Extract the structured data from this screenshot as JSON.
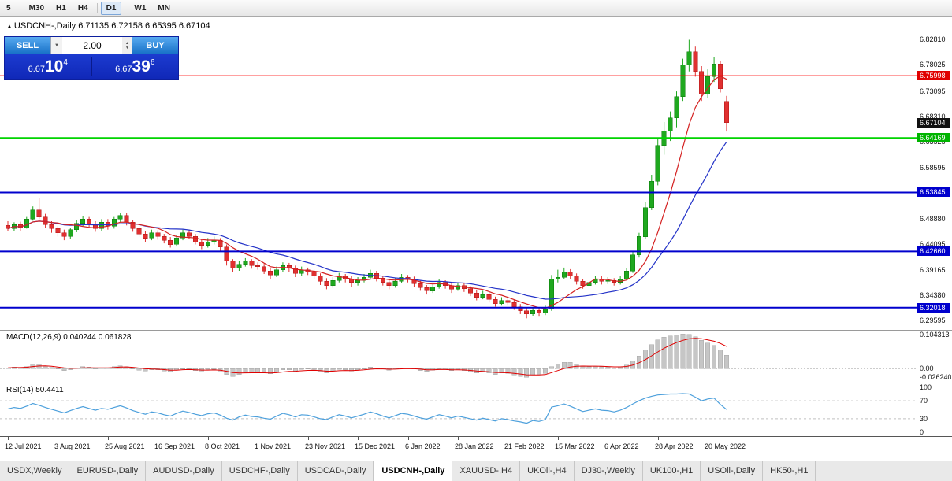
{
  "toolbar": {
    "timeframes": [
      {
        "label": "5",
        "active": false
      },
      {
        "label": "M30",
        "active": false
      },
      {
        "label": "H1",
        "active": false
      },
      {
        "label": "H4",
        "active": false
      },
      {
        "label": "D1",
        "active": true
      },
      {
        "label": "W1",
        "active": false
      },
      {
        "label": "MN",
        "active": false
      }
    ]
  },
  "chart": {
    "arrow": "▲",
    "title": "USDCNH-,Daily",
    "ohlc_text": "6.71135 6.72158 6.65395 6.67104"
  },
  "trade_panel": {
    "sell_label": "SELL",
    "buy_label": "BUY",
    "volume": "2.00",
    "sell_price_main": "6.67",
    "sell_price_big": "10",
    "sell_price_sup": "4",
    "buy_price_main": "6.67",
    "buy_price_big": "39",
    "buy_price_sup": "6"
  },
  "chart_data": {
    "type": "candlestick",
    "symbol": "USDCNH-",
    "timeframe": "Daily",
    "title": "USDCNH-,Daily",
    "last": {
      "open": 6.71135,
      "high": 6.72158,
      "low": 6.65395,
      "close": 6.67104
    },
    "y_axis": {
      "max": 6.872,
      "min": 6.278,
      "ticks": [
        6.8281,
        6.78025,
        6.73095,
        6.6831,
        6.63525,
        6.58595,
        6.4888,
        6.44095,
        6.39165,
        6.3438,
        6.29595
      ]
    },
    "x_labels": [
      "12 Jul 2021",
      "3 Aug 2021",
      "25 Aug 2021",
      "16 Sep 2021",
      "8 Oct 2021",
      "1 Nov 2021",
      "23 Nov 2021",
      "15 Dec 2021",
      "6 Jan 2022",
      "28 Jan 2022",
      "21 Feb 2022",
      "15 Mar 2022",
      "6 Apr 2022",
      "28 Apr 2022",
      "20 May 2022"
    ],
    "candles": [
      [
        6.476,
        6.484,
        6.465,
        6.47
      ],
      [
        6.47,
        6.482,
        6.466,
        6.478
      ],
      [
        6.478,
        6.483,
        6.465,
        6.472
      ],
      [
        6.472,
        6.492,
        6.47,
        6.488
      ],
      [
        6.488,
        6.512,
        6.485,
        6.505
      ],
      [
        6.505,
        6.528,
        6.488,
        6.492
      ],
      [
        6.492,
        6.498,
        6.472,
        6.478
      ],
      [
        6.478,
        6.484,
        6.462,
        6.47
      ],
      [
        6.47,
        6.475,
        6.455,
        6.462
      ],
      [
        6.462,
        6.468,
        6.448,
        6.455
      ],
      [
        6.455,
        6.472,
        6.45,
        6.468
      ],
      [
        6.468,
        6.486,
        6.463,
        6.48
      ],
      [
        6.48,
        6.494,
        6.475,
        6.488
      ],
      [
        6.488,
        6.492,
        6.472,
        6.478
      ],
      [
        6.478,
        6.484,
        6.464,
        6.47
      ],
      [
        6.47,
        6.488,
        6.466,
        6.482
      ],
      [
        6.482,
        6.488,
        6.468,
        6.475
      ],
      [
        6.475,
        6.492,
        6.47,
        6.488
      ],
      [
        6.488,
        6.5,
        6.482,
        6.495
      ],
      [
        6.495,
        6.499,
        6.476,
        6.482
      ],
      [
        6.482,
        6.487,
        6.464,
        6.47
      ],
      [
        6.47,
        6.476,
        6.454,
        6.46
      ],
      [
        6.46,
        6.466,
        6.445,
        6.452
      ],
      [
        6.452,
        6.468,
        6.448,
        6.462
      ],
      [
        6.462,
        6.467,
        6.449,
        6.455
      ],
      [
        6.455,
        6.46,
        6.442,
        6.448
      ],
      [
        6.448,
        6.454,
        6.434,
        6.44
      ],
      [
        6.44,
        6.458,
        6.436,
        6.452
      ],
      [
        6.452,
        6.468,
        6.448,
        6.462
      ],
      [
        6.462,
        6.467,
        6.45,
        6.455
      ],
      [
        6.455,
        6.46,
        6.44,
        6.445
      ],
      [
        6.445,
        6.45,
        6.431,
        6.438
      ],
      [
        6.438,
        6.452,
        6.434,
        6.445
      ],
      [
        6.445,
        6.455,
        6.44,
        6.448
      ],
      [
        6.448,
        6.452,
        6.428,
        6.435
      ],
      [
        6.435,
        6.44,
        6.4,
        6.408
      ],
      [
        6.408,
        6.412,
        6.388,
        6.395
      ],
      [
        6.395,
        6.408,
        6.39,
        6.402
      ],
      [
        6.402,
        6.414,
        6.398,
        6.408
      ],
      [
        6.408,
        6.412,
        6.394,
        6.4
      ],
      [
        6.4,
        6.406,
        6.392,
        6.398
      ],
      [
        6.398,
        6.403,
        6.384,
        6.39
      ],
      [
        6.39,
        6.395,
        6.375,
        6.382
      ],
      [
        6.382,
        6.398,
        6.378,
        6.392
      ],
      [
        6.392,
        6.406,
        6.388,
        6.4
      ],
      [
        6.4,
        6.405,
        6.388,
        6.395
      ],
      [
        6.395,
        6.4,
        6.378,
        6.385
      ],
      [
        6.385,
        6.398,
        6.38,
        6.392
      ],
      [
        6.392,
        6.396,
        6.382,
        6.388
      ],
      [
        6.388,
        6.392,
        6.374,
        6.38
      ],
      [
        6.38,
        6.385,
        6.363,
        6.37
      ],
      [
        6.37,
        6.376,
        6.355,
        6.362
      ],
      [
        6.362,
        6.378,
        6.358,
        6.372
      ],
      [
        6.372,
        6.386,
        6.368,
        6.38
      ],
      [
        6.38,
        6.384,
        6.368,
        6.375
      ],
      [
        6.375,
        6.38,
        6.36,
        6.368
      ],
      [
        6.368,
        6.378,
        6.362,
        6.372
      ],
      [
        6.372,
        6.384,
        6.368,
        6.378
      ],
      [
        6.378,
        6.392,
        6.374,
        6.385
      ],
      [
        6.385,
        6.39,
        6.37,
        6.376
      ],
      [
        6.376,
        6.381,
        6.362,
        6.368
      ],
      [
        6.368,
        6.373,
        6.355,
        6.362
      ],
      [
        6.362,
        6.376,
        6.358,
        6.37
      ],
      [
        6.37,
        6.384,
        6.366,
        6.378
      ],
      [
        6.378,
        6.382,
        6.368,
        6.374
      ],
      [
        6.374,
        6.379,
        6.36,
        6.366
      ],
      [
        6.366,
        6.371,
        6.352,
        6.358
      ],
      [
        6.358,
        6.363,
        6.345,
        6.352
      ],
      [
        6.352,
        6.366,
        6.348,
        6.36
      ],
      [
        6.36,
        6.374,
        6.356,
        6.368
      ],
      [
        6.368,
        6.372,
        6.356,
        6.362
      ],
      [
        6.362,
        6.367,
        6.348,
        6.355
      ],
      [
        6.355,
        6.368,
        6.352,
        6.362
      ],
      [
        6.362,
        6.366,
        6.35,
        6.356
      ],
      [
        6.356,
        6.361,
        6.342,
        6.348
      ],
      [
        6.348,
        6.353,
        6.334,
        6.34
      ],
      [
        6.34,
        6.352,
        6.336,
        6.345
      ],
      [
        6.345,
        6.35,
        6.33,
        6.336
      ],
      [
        6.336,
        6.341,
        6.322,
        6.328
      ],
      [
        6.328,
        6.34,
        6.324,
        6.334
      ],
      [
        6.334,
        6.338,
        6.324,
        6.33
      ],
      [
        6.33,
        6.335,
        6.316,
        6.322
      ],
      [
        6.322,
        6.327,
        6.308,
        6.314
      ],
      [
        6.314,
        6.319,
        6.3,
        6.308
      ],
      [
        6.308,
        6.321,
        6.304,
        6.315
      ],
      [
        6.315,
        6.319,
        6.303,
        6.31
      ],
      [
        6.31,
        6.324,
        6.306,
        6.318
      ],
      [
        6.318,
        6.382,
        6.314,
        6.375
      ],
      [
        6.375,
        6.392,
        6.368,
        6.378
      ],
      [
        6.378,
        6.396,
        6.374,
        6.388
      ],
      [
        6.388,
        6.393,
        6.374,
        6.38
      ],
      [
        6.38,
        6.385,
        6.364,
        6.37
      ],
      [
        6.37,
        6.375,
        6.356,
        6.362
      ],
      [
        6.362,
        6.374,
        6.358,
        6.368
      ],
      [
        6.368,
        6.381,
        6.364,
        6.375
      ],
      [
        6.375,
        6.38,
        6.364,
        6.37
      ],
      [
        6.37,
        6.378,
        6.365,
        6.372
      ],
      [
        6.372,
        6.376,
        6.362,
        6.368
      ],
      [
        6.368,
        6.381,
        6.364,
        6.375
      ],
      [
        6.375,
        6.395,
        6.372,
        6.39
      ],
      [
        6.39,
        6.428,
        6.386,
        6.42
      ],
      [
        6.42,
        6.462,
        6.415,
        6.455
      ],
      [
        6.455,
        6.52,
        6.45,
        6.51
      ],
      [
        6.51,
        6.572,
        6.505,
        6.56
      ],
      [
        6.56,
        6.64,
        6.552,
        6.628
      ],
      [
        6.628,
        6.672,
        6.61,
        6.655
      ],
      [
        6.655,
        6.692,
        6.636,
        6.68
      ],
      [
        6.68,
        6.73,
        6.662,
        6.72
      ],
      [
        6.72,
        6.792,
        6.712,
        6.78
      ],
      [
        6.78,
        6.828,
        6.768,
        6.805
      ],
      [
        6.805,
        6.815,
        6.758,
        6.768
      ],
      [
        6.768,
        6.778,
        6.712,
        6.725
      ],
      [
        6.725,
        6.772,
        6.718,
        6.758
      ],
      [
        6.758,
        6.795,
        6.748,
        6.782
      ],
      [
        6.782,
        6.788,
        6.728,
        6.735
      ],
      [
        6.71135,
        6.72158,
        6.65395,
        6.67104
      ]
    ],
    "hlines": [
      {
        "price": 6.75998,
        "color": "#ff0000",
        "width": 1
      },
      {
        "price": 6.64169,
        "color": "#00d400",
        "width": 2
      },
      {
        "price": 6.53845,
        "color": "#0000cd",
        "width": 2
      },
      {
        "price": 6.4266,
        "color": "#0000cd",
        "width": 2
      },
      {
        "price": 6.32018,
        "color": "#0000cd",
        "width": 2
      }
    ],
    "badges": [
      {
        "price": 6.75998,
        "bg": "#e00000"
      },
      {
        "price": 6.67104,
        "bg": "#111111"
      },
      {
        "price": 6.64169,
        "bg": "#00b400"
      },
      {
        "price": 6.53845,
        "bg": "#0000cd"
      },
      {
        "price": 6.4266,
        "bg": "#0000cd"
      },
      {
        "price": 6.32018,
        "bg": "#0000cd"
      }
    ],
    "colors": {
      "up": "#1fa81f",
      "up_border": "#0b7a0b",
      "down": "#e03030",
      "down_border": "#b01818",
      "ma_fast": "#d42020",
      "ma_slow": "#2433c8"
    }
  },
  "macd": {
    "label": "MACD(12,26,9)",
    "values_text": "0.040244 0.061828",
    "axis": [
      "0.104313",
      "0.00",
      "-0.026240"
    ],
    "bar_color": "#c6c6c6",
    "signal_color": "#e00000",
    "hist": [
      0.002,
      0.004,
      0.003,
      0.006,
      0.012,
      0.013,
      0.008,
      0.003,
      -0.002,
      -0.006,
      -0.004,
      0.001,
      0.005,
      0.004,
      0,
      0.002,
      0.002,
      0.005,
      0.008,
      0.006,
      0,
      -0.005,
      -0.008,
      -0.004,
      -0.004,
      -0.007,
      -0.01,
      -0.005,
      0,
      -0.002,
      -0.006,
      -0.008,
      -0.005,
      -0.003,
      -0.008,
      -0.018,
      -0.024,
      -0.018,
      -0.012,
      -0.012,
      -0.012,
      -0.014,
      -0.016,
      -0.01,
      -0.004,
      -0.004,
      -0.007,
      -0.003,
      -0.002,
      -0.005,
      -0.01,
      -0.013,
      -0.008,
      -0.003,
      -0.004,
      -0.007,
      -0.004,
      0,
      0.004,
      0.002,
      -0.002,
      -0.005,
      -0.002,
      0.002,
      0.001,
      -0.002,
      -0.006,
      -0.009,
      -0.005,
      -0.001,
      -0.003,
      -0.006,
      -0.004,
      -0.006,
      -0.01,
      -0.014,
      -0.011,
      -0.014,
      -0.018,
      -0.014,
      -0.015,
      -0.019,
      -0.024,
      -0.026,
      -0.02,
      -0.02,
      -0.015,
      0.005,
      0.012,
      0.018,
      0.018,
      0.014,
      0.008,
      0.006,
      0.007,
      0.005,
      0.004,
      0.002,
      0.004,
      0.01,
      0.022,
      0.038,
      0.055,
      0.072,
      0.086,
      0.094,
      0.098,
      0.102,
      0.104,
      0.103,
      0.096,
      0.085,
      0.076,
      0.07,
      0.055,
      0.04
    ]
  },
  "rsi": {
    "label": "RSI(14)",
    "value_text": "50.4411",
    "axis": [
      "100",
      "70",
      "30",
      "0"
    ],
    "levels": [
      70,
      30
    ],
    "line_color": "#4da0dc",
    "values": [
      52,
      55,
      53,
      58,
      64,
      60,
      55,
      51,
      47,
      43,
      48,
      53,
      57,
      53,
      49,
      53,
      51,
      55,
      59,
      54,
      48,
      44,
      40,
      45,
      43,
      39,
      36,
      42,
      47,
      44,
      40,
      37,
      41,
      43,
      38,
      31,
      27,
      34,
      38,
      35,
      34,
      31,
      29,
      36,
      42,
      39,
      34,
      39,
      38,
      34,
      30,
      28,
      34,
      39,
      36,
      32,
      36,
      40,
      45,
      41,
      36,
      32,
      37,
      42,
      40,
      36,
      32,
      29,
      34,
      39,
      36,
      32,
      36,
      33,
      30,
      27,
      31,
      28,
      25,
      30,
      28,
      25,
      23,
      20,
      26,
      24,
      28,
      56,
      59,
      63,
      58,
      52,
      46,
      49,
      52,
      49,
      48,
      45,
      49,
      55,
      63,
      70,
      76,
      80,
      83,
      84,
      85,
      85,
      86,
      85,
      78,
      70,
      74,
      76,
      62,
      50.44
    ]
  },
  "tabs": [
    {
      "label": "USDX,Weekly",
      "active": false
    },
    {
      "label": "EURUSD-,Daily",
      "active": false
    },
    {
      "label": "AUDUSD-,Daily",
      "active": false
    },
    {
      "label": "USDCHF-,Daily",
      "active": false
    },
    {
      "label": "USDCAD-,Daily",
      "active": false
    },
    {
      "label": "USDCNH-,Daily",
      "active": true
    },
    {
      "label": "XAUUSD-,H4",
      "active": false
    },
    {
      "label": "UKOil-,H4",
      "active": false
    },
    {
      "label": "DJ30-,Weekly",
      "active": false
    },
    {
      "label": "UK100-,H1",
      "active": false
    },
    {
      "label": "USOil-,Daily",
      "active": false
    },
    {
      "label": "HK50-,H1",
      "active": false
    }
  ]
}
